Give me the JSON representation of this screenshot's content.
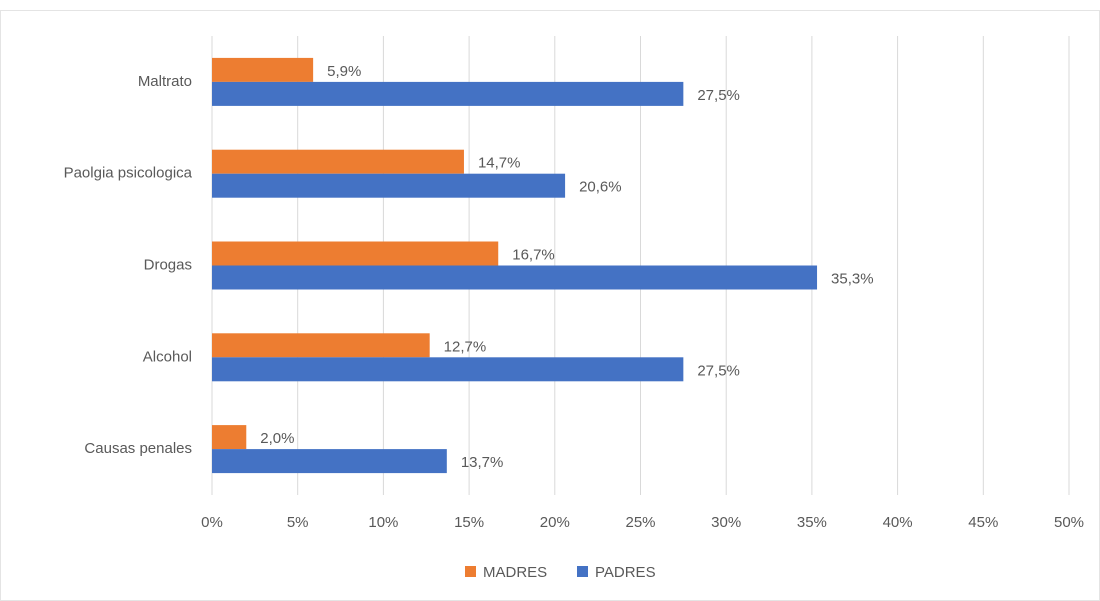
{
  "chart_data": {
    "type": "bar",
    "orientation": "horizontal",
    "categories": [
      "Maltrato",
      "Paolgia psicologica",
      "Drogas",
      "Alcohol",
      "Causas penales"
    ],
    "series": [
      {
        "name": "MADRES",
        "color": "#ed7d31",
        "values": [
          5.9,
          14.7,
          16.7,
          12.7,
          2.0
        ],
        "value_labels": [
          "5,9%",
          "14,7%",
          "16,7%",
          "12,7%",
          "2,0%"
        ]
      },
      {
        "name": "PADRES",
        "color": "#4472c4",
        "values": [
          27.5,
          20.6,
          35.3,
          27.5,
          13.7
        ],
        "value_labels": [
          "27,5%",
          "20,6%",
          "35,3%",
          "27,5%",
          "13,7%"
        ]
      }
    ],
    "xlim": [
      0,
      50
    ],
    "xticks": [
      {
        "value": 0,
        "label": "0%"
      },
      {
        "value": 5,
        "label": "5%"
      },
      {
        "value": 10,
        "label": "10%"
      },
      {
        "value": 15,
        "label": "15%"
      },
      {
        "value": 20,
        "label": "20%"
      },
      {
        "value": 25,
        "label": "25%"
      },
      {
        "value": 30,
        "label": "30%"
      },
      {
        "value": 35,
        "label": "35%"
      },
      {
        "value": 40,
        "label": "40%"
      },
      {
        "value": 45,
        "label": "45%"
      },
      {
        "value": 50,
        "label": "50%"
      }
    ],
    "grid": true,
    "legend": "bottom"
  }
}
